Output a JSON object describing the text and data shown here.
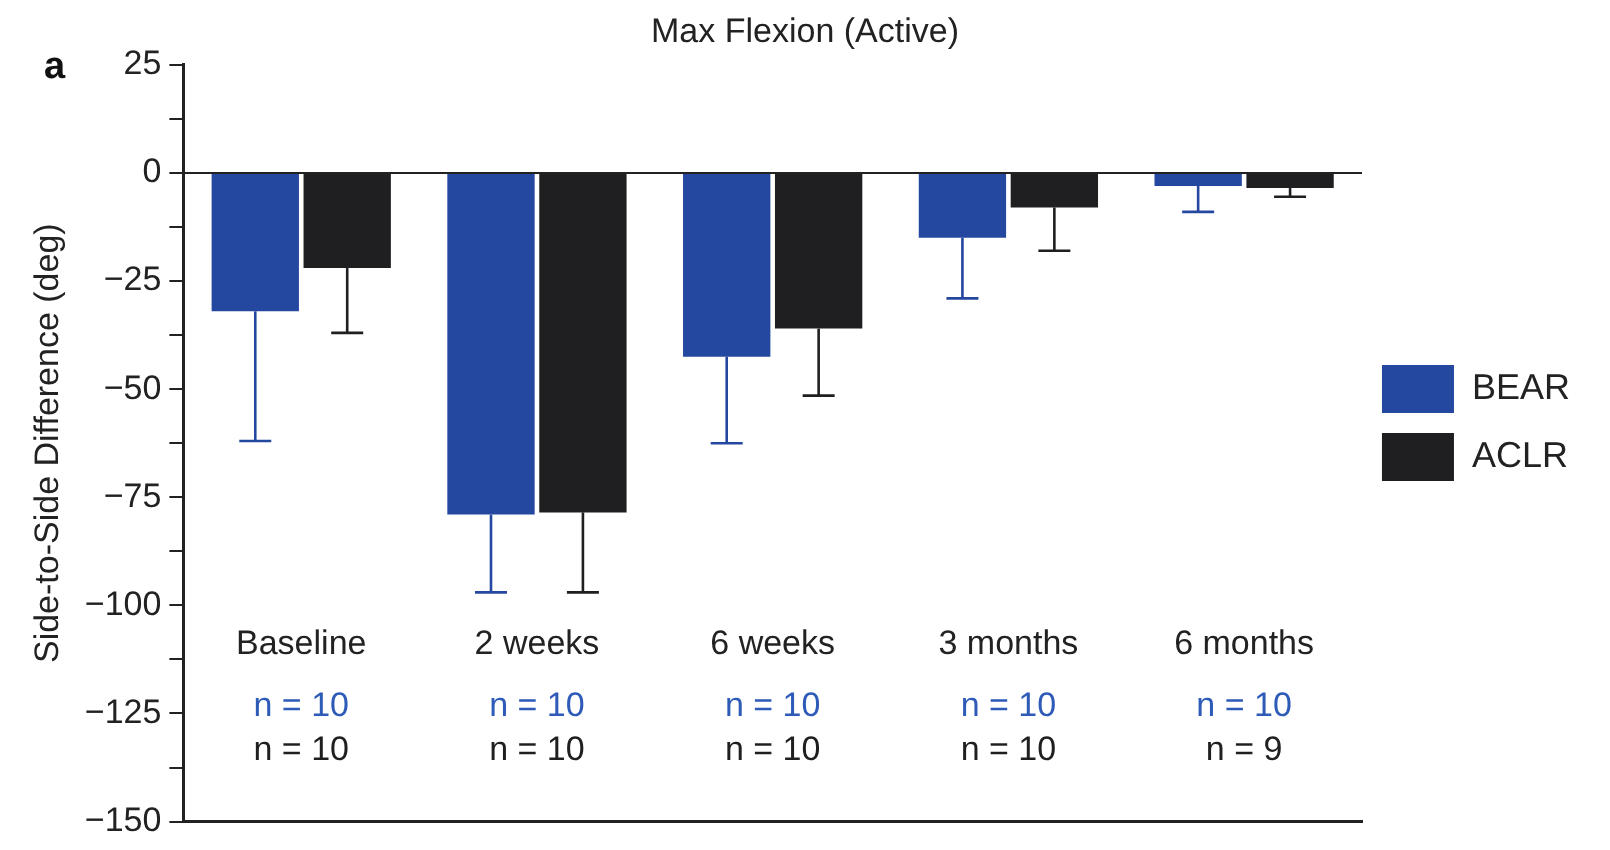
{
  "chart_data": {
    "type": "bar",
    "title": "Max Flexion (Active)",
    "ylabel": "Side-to-Side Difference (deg)",
    "categories": [
      "Baseline",
      "2 weeks",
      "6 weeks",
      "3 months",
      "6 months"
    ],
    "series": [
      {
        "name": "BEAR",
        "color": "#2447a0",
        "values": [
          -32,
          -79,
          -42.5,
          -15,
          -3
        ],
        "errors": [
          [
            -62,
            -32
          ],
          [
            -97,
            -79
          ],
          [
            -62.5,
            -42.5
          ],
          [
            -29,
            -15
          ],
          [
            -9,
            -3
          ]
        ]
      },
      {
        "name": "ACLR",
        "color": "#1f1f21",
        "values": [
          -22,
          -78.5,
          -36,
          -8,
          -3.5
        ],
        "errors": [
          [
            -37,
            -22
          ],
          [
            -97,
            -78.5
          ],
          [
            -51.5,
            -36
          ],
          [
            -18,
            -8
          ],
          [
            -5.5,
            -3.5
          ]
        ]
      }
    ],
    "ylim": [
      -150,
      25
    ],
    "yticks": [
      25,
      {
        "value": 12.5,
        "label": null
      },
      0,
      {
        "value": -12.5,
        "label": null
      },
      -25,
      {
        "value": -37.5,
        "label": null
      },
      -50,
      {
        "value": -62.5,
        "label": null
      },
      -75,
      {
        "value": -87.5,
        "label": null
      },
      -100,
      {
        "value": -112.5,
        "label": null
      },
      -125,
      {
        "value": -137.5,
        "label": null
      },
      -150
    ],
    "legend": "right",
    "ref_lines": [
      {
        "axis": "y",
        "value": 0,
        "color": "#222222"
      }
    ],
    "annotations": [
      "a",
      "n = 10",
      "n = 10",
      "n = 10",
      "n = 10",
      "n = 10",
      "n = 10",
      "n = 10",
      "n = 10",
      "n = 10",
      "n = 9"
    ]
  }
}
